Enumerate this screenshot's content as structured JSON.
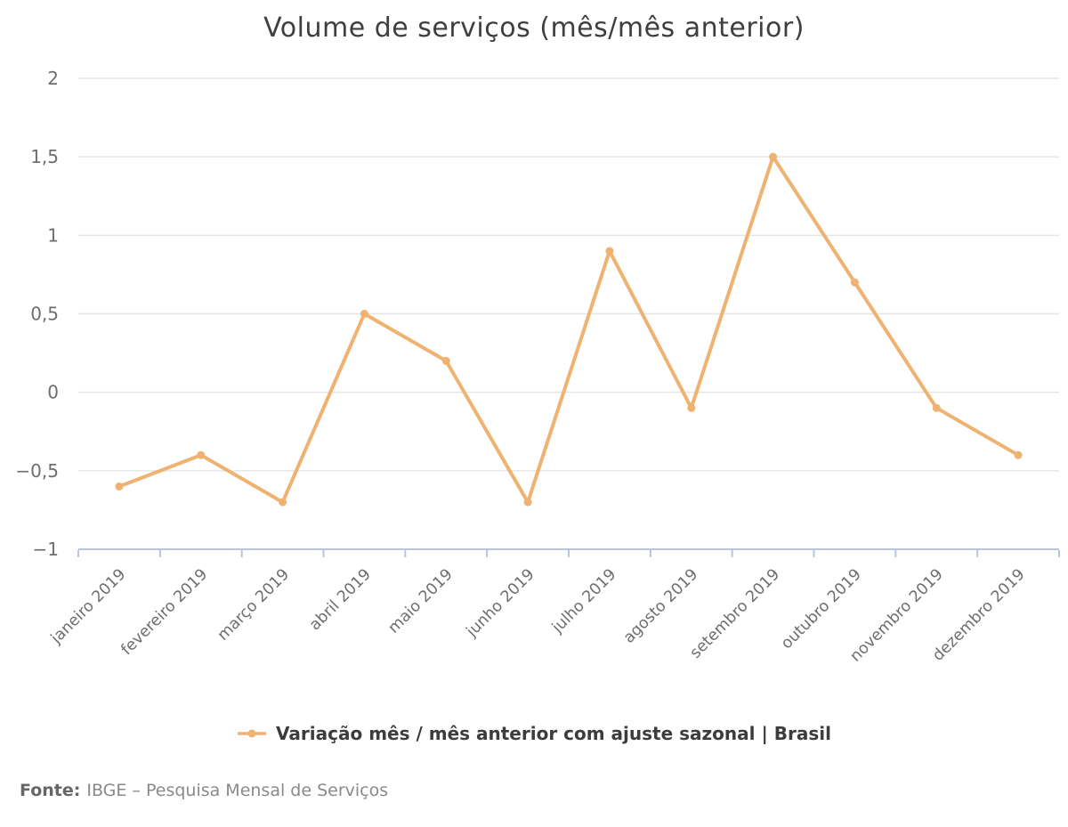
{
  "title": "Volume de serviços (mês/mês anterior)",
  "legend": {
    "label": "Variação mês / mês anterior com ajuste sazonal | Brasil"
  },
  "footer": {
    "label": "Fonte:",
    "text": "IBGE – Pesquisa Mensal de Serviços"
  },
  "colors": {
    "line": "#efb271",
    "grid": "#e6e6e6",
    "axis": "#b9c5dc",
    "tick_text": "#6e6e6e",
    "title_text": "#3f3f3f",
    "legend_text": "#3c3c3c"
  },
  "chart_data": {
    "type": "line",
    "title": "Volume de serviços (mês/mês anterior)",
    "categories": [
      "janeiro 2019",
      "fevereiro 2019",
      "março 2019",
      "abril 2019",
      "maio 2019",
      "junho 2019",
      "julho 2019",
      "agosto 2019",
      "setembro 2019",
      "outubro 2019",
      "novembro 2019",
      "dezembro 2019"
    ],
    "series": [
      {
        "name": "Variação mês / mês anterior com ajuste sazonal | Brasil",
        "values": [
          -0.6,
          -0.4,
          -0.7,
          0.5,
          0.2,
          -0.7,
          0.9,
          -0.1,
          1.5,
          0.7,
          -0.1,
          -0.4
        ]
      }
    ],
    "ylim": [
      -1,
      2
    ],
    "yticks": [
      {
        "value": 2,
        "label": "2"
      },
      {
        "value": 1.5,
        "label": "1,5"
      },
      {
        "value": 1,
        "label": "1"
      },
      {
        "value": 0.5,
        "label": "0,5"
      },
      {
        "value": 0,
        "label": "0"
      },
      {
        "value": -0.5,
        "label": "−0,5"
      },
      {
        "value": -1,
        "label": "−1"
      }
    ],
    "grid": true,
    "legend_position": "bottom",
    "xlabel": "",
    "ylabel": ""
  }
}
